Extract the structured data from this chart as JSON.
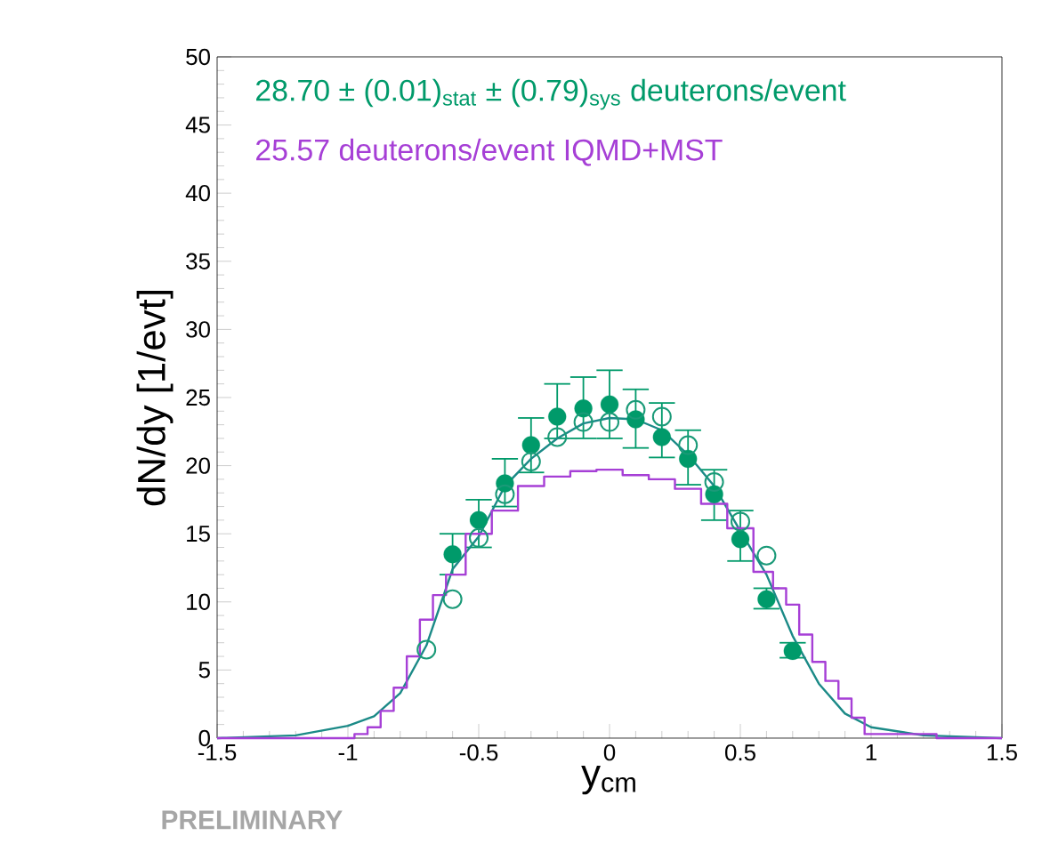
{
  "chart_data": {
    "type": "scatter",
    "xlabel": "y$_{cm}$",
    "ylabel": "dN/dy [1/evt]",
    "xlim": [
      -1.5,
      1.5
    ],
    "xticks": [
      -1.5,
      -1,
      -0.5,
      0,
      0.5,
      1,
      1.5
    ],
    "ylim": [
      0,
      50
    ],
    "yticks": [
      0,
      5,
      10,
      15,
      20,
      25,
      30,
      35,
      40,
      45,
      50
    ],
    "legend": false,
    "marker": "circle",
    "annotations": [
      "PRELIMINARY"
    ],
    "series": [
      {
        "name": "28.70 ± (0.01)$_{stat}$ ± (0.79)$_{sys}$ deuterons/event",
        "color": "#009a6a",
        "x": [
          -0.6,
          -0.5,
          -0.4,
          -0.3,
          -0.2,
          -0.1,
          0,
          0.1,
          0.2,
          0.3,
          0.4,
          0.5,
          0.6,
          0.7
        ],
        "values": [
          13.5,
          16,
          18.7,
          21.5,
          23.6,
          24.2,
          24.5,
          23.4,
          22.1,
          20.5,
          17.9,
          14.6,
          10.2,
          6.4
        ],
        "errors": [
          [
            12,
            15
          ],
          [
            14,
            17.5
          ],
          [
            17,
            20.5
          ],
          [
            19.5,
            23.5
          ],
          [
            22,
            26
          ],
          [
            22,
            26.5
          ],
          [
            22,
            27
          ],
          [
            21.3,
            25.6
          ],
          [
            20.6,
            24.6
          ],
          [
            18.6,
            22.6
          ],
          [
            16,
            19.7
          ],
          [
            13,
            16.7
          ],
          [
            9.5,
            11
          ],
          [
            5.9,
            7
          ]
        ]
      },
      {
        "color": "#1a9a78",
        "x": [
          -0.7,
          -0.6,
          -0.5,
          -0.4,
          -0.3,
          -0.2,
          -0.1,
          0,
          0.1,
          0.2,
          0.3,
          0.4,
          0.5,
          0.6
        ],
        "values": [
          6.5,
          10.2,
          14.7,
          17.9,
          20.3,
          22.1,
          23.2,
          23.2,
          24.1,
          23.6,
          21.5,
          18.8,
          15.9,
          13.4
        ]
      },
      {
        "type": "line",
        "marker": "none",
        "color": "#1b8a87",
        "x": [
          -1.5,
          -1.2,
          -1,
          -0.9,
          -0.8,
          -0.7,
          -0.6,
          -0.5,
          -0.4,
          -0.3,
          -0.2,
          -0.1,
          0,
          0.1,
          0.2,
          0.3,
          0.4,
          0.5,
          0.6,
          0.7,
          0.8,
          0.9,
          1,
          1.2,
          1.5
        ],
        "values": [
          0,
          0.2,
          0.9,
          1.6,
          3.3,
          6.8,
          12.4,
          14.8,
          18.5,
          20.5,
          22,
          23.1,
          23.5,
          23.4,
          22.6,
          20.8,
          18.5,
          15.2,
          12,
          7.5,
          4,
          1.8,
          0.8,
          0.2,
          0
        ]
      },
      {
        "type": "step",
        "marker": "none",
        "name": "25.57 deuterons/event IQMD+MST",
        "color": "#a63fd6",
        "x": [
          -1.5,
          -1,
          -0.95,
          -0.9,
          -0.85,
          -0.8,
          -0.75,
          -0.7,
          -0.65,
          -0.6,
          -0.5,
          -0.4,
          -0.3,
          -0.2,
          -0.1,
          0,
          0.1,
          0.2,
          0.3,
          0.4,
          0.5,
          0.6,
          0.65,
          0.7,
          0.75,
          0.8,
          0.85,
          0.9,
          0.95,
          1,
          1.5
        ],
        "values": [
          0,
          0,
          0.3,
          0.8,
          2,
          3.7,
          6,
          8.7,
          10.5,
          12,
          15,
          16.7,
          18.5,
          19.2,
          19.6,
          19.7,
          19.3,
          19,
          18.3,
          17.2,
          15.4,
          12.2,
          11,
          9.8,
          7.6,
          5.6,
          4.2,
          2.9,
          1.5,
          0.3,
          0
        ]
      }
    ]
  }
}
